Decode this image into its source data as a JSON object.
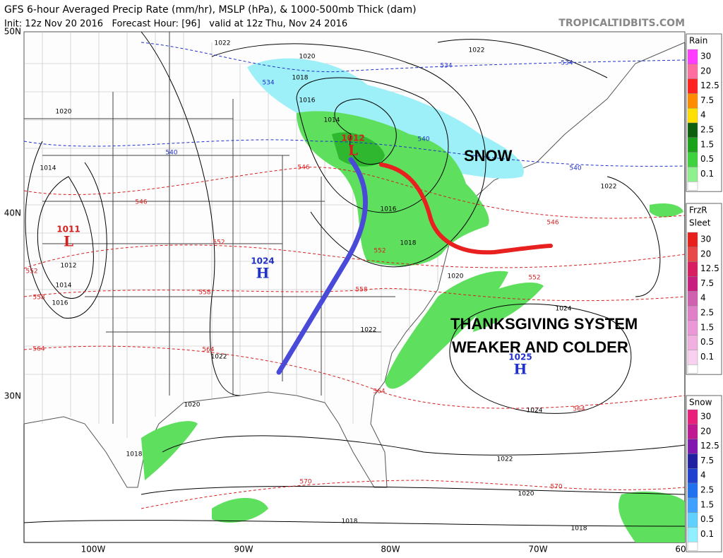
{
  "header": {
    "title": "GFS 6-hour Averaged Precip Rate (mm/hr), MSLP (hPa), & 1000-500mb Thick (dam)",
    "subtitle": "Init: 12z Nov 20 2016   Forecast Hour: [96]   valid at 12z Thu, Nov 24 2016",
    "source": "TROPICALTIDBITS.COM"
  },
  "axes": {
    "lat_labels": [
      "50N",
      "40N",
      "30N"
    ],
    "lon_labels": [
      "100W",
      "90W",
      "80W",
      "70W",
      "60W"
    ]
  },
  "legends": [
    {
      "title": "Rain",
      "levels": [
        "30",
        "20",
        "12.5",
        "7.5",
        "4",
        "2.5",
        "1.5",
        "0.5",
        "0.1"
      ]
    },
    {
      "title": "FrzR",
      "subtitle": "Sleet",
      "levels": [
        "30",
        "20",
        "12.5",
        "7.5",
        "4",
        "2.5",
        "1.5",
        "0.5",
        "0.1"
      ]
    },
    {
      "title": "Snow",
      "levels": [
        "30",
        "20",
        "12.5",
        "7.5",
        "4",
        "2.5",
        "1.5",
        "0.5",
        "0.1"
      ]
    }
  ],
  "pressure_centers": [
    {
      "value": "1012",
      "symbol": "L"
    },
    {
      "value": "1011",
      "symbol": "L"
    },
    {
      "value": "1024",
      "symbol": "H"
    },
    {
      "value": "1025",
      "symbol": "H"
    }
  ],
  "isobar_labels": [
    "1022",
    "1020",
    "1022",
    "1018",
    "1016",
    "1014",
    "1020",
    "1014",
    "1016",
    "1018",
    "1020",
    "1012",
    "1014",
    "1016",
    "1022",
    "1022",
    "1020",
    "1018",
    "1022",
    "1020",
    "1018",
    "1018",
    "1024",
    "1024",
    "1022"
  ],
  "thickness_labels": [
    "534",
    "534",
    "534",
    "540",
    "540",
    "540",
    "546",
    "546",
    "546",
    "552",
    "552",
    "552",
    "552",
    "558",
    "558",
    "558",
    "564",
    "564",
    "564",
    "564",
    "570",
    "570"
  ],
  "annotations": [
    "SNOW",
    "THANKSGIVING SYSTEM",
    "WEAKER AND COLDER"
  ]
}
